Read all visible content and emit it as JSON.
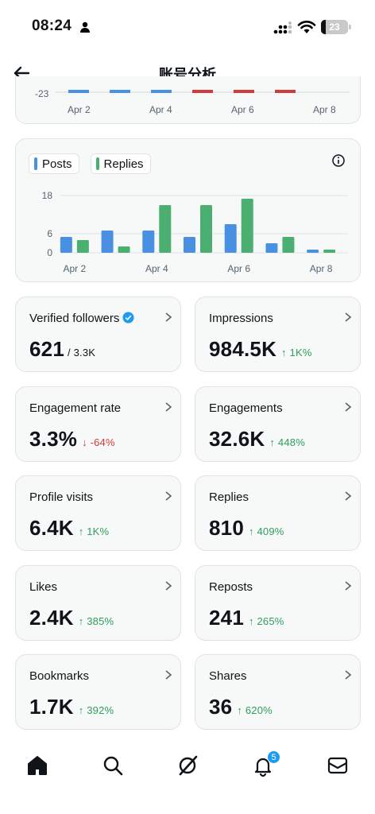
{
  "status_bar": {
    "time": "08:24",
    "battery": "23"
  },
  "header": {
    "title": "账号分析"
  },
  "top_chart": {
    "y_tick": "-23",
    "x_labels": [
      "Apr 2",
      "Apr 4",
      "Apr 6",
      "Apr 8"
    ]
  },
  "legend": {
    "posts": "Posts",
    "replies": "Replies"
  },
  "chart_data": {
    "type": "bar",
    "categories": [
      "Apr 2",
      "Apr 3",
      "Apr 4",
      "Apr 5",
      "Apr 6",
      "Apr 7",
      "Apr 8"
    ],
    "x_tick_labels": [
      "Apr 2",
      "Apr 4",
      "Apr 6",
      "Apr 8"
    ],
    "y_ticks": [
      0,
      6,
      18
    ],
    "ylim": [
      0,
      20
    ],
    "grid": true,
    "legend_position": "top-left",
    "series": [
      {
        "name": "Posts",
        "color": "#4a90e2",
        "values": [
          5,
          7,
          7,
          5,
          9,
          3,
          1
        ]
      },
      {
        "name": "Replies",
        "color": "#4caf72",
        "values": [
          4,
          2,
          15,
          15,
          17,
          5,
          1
        ]
      }
    ]
  },
  "stats": [
    {
      "label": "Verified followers",
      "value": "621",
      "sub": "/ 3.3K",
      "verified": true
    },
    {
      "label": "Impressions",
      "value": "984.5K",
      "delta": "↑ 1K%",
      "dir": "up"
    },
    {
      "label": "Engagement rate",
      "value": "3.3%",
      "delta": "↓ -64%",
      "dir": "down"
    },
    {
      "label": "Engagements",
      "value": "32.6K",
      "delta": "↑ 448%",
      "dir": "up"
    },
    {
      "label": "Profile visits",
      "value": "6.4K",
      "delta": "↑ 1K%",
      "dir": "up"
    },
    {
      "label": "Replies",
      "value": "810",
      "delta": "↑ 409%",
      "dir": "up"
    },
    {
      "label": "Likes",
      "value": "2.4K",
      "delta": "↑ 385%",
      "dir": "up"
    },
    {
      "label": "Reposts",
      "value": "241",
      "delta": "↑ 265%",
      "dir": "up"
    },
    {
      "label": "Bookmarks",
      "value": "1.7K",
      "delta": "↑ 392%",
      "dir": "up"
    },
    {
      "label": "Shares",
      "value": "36",
      "delta": "↑ 620%",
      "dir": "up"
    }
  ],
  "tab_bar": {
    "notifications_badge": "5",
    "icons": [
      "home-icon",
      "search-icon",
      "grok-icon",
      "bell-icon",
      "mail-icon"
    ]
  },
  "colors": {
    "accent": "#1d9bf0",
    "up": "#2e9e5b",
    "down": "#d23b3b",
    "posts": "#4a90e2",
    "replies": "#4caf72"
  }
}
